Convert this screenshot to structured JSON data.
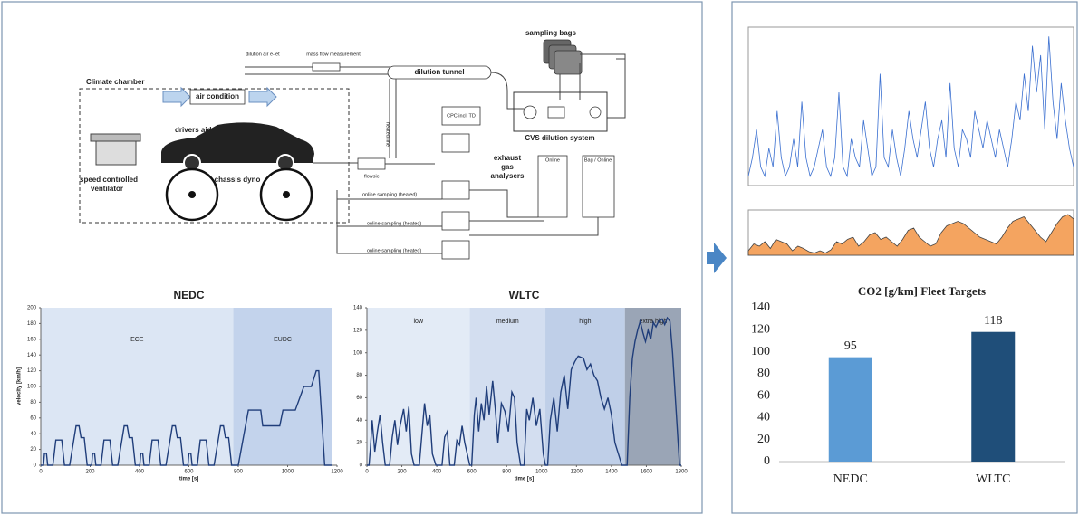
{
  "diagram": {
    "sampling_bags": "sampling bags",
    "dilution_air": "dilution air e-let",
    "mass_flow": "mass flow measurement",
    "dilution_tunnel": "dilution tunnel",
    "climate_chamber": "Climate chamber",
    "air_condition": "air condition",
    "drivers_aid": "drivers aid",
    "ventilator_1": "speed controlled",
    "ventilator_2": "ventilator",
    "chassis_dyno": "chassis dyno",
    "cpc": "CPC incl. TD",
    "cvs": "CVS dilution system",
    "analysers_1": "exhaust",
    "analysers_2": "gas",
    "analysers_3": "analysers",
    "online": "Online",
    "bag_online": "Bag / Online",
    "flowsic": "flowsic",
    "heated_line": "heated line",
    "sampling_1": "online sampling (heated)",
    "sampling_2": "online sampling (heated)",
    "sampling_3": "online sampling (heated)"
  },
  "chart_data": [
    {
      "type": "line",
      "title": "NEDC",
      "xlabel": "time [s]",
      "ylabel": "velocity [km/h]",
      "xlim": [
        0,
        1200
      ],
      "xticks": [
        0,
        200,
        400,
        600,
        800,
        1000,
        1200
      ],
      "ylim": [
        0,
        200
      ],
      "yticks": [
        0,
        20,
        40,
        60,
        80,
        100,
        120,
        140,
        160,
        180,
        200
      ],
      "phases": [
        {
          "name": "ECE",
          "start": 0,
          "end": 780,
          "color": "#dce6f4"
        },
        {
          "name": "EUDC",
          "start": 780,
          "end": 1180,
          "color": "#c3d3ec"
        }
      ],
      "series": [
        {
          "color": "#1f3d7a",
          "x": [
            0,
            11,
            15,
            23,
            28,
            49,
            61,
            85,
            96,
            117,
            143,
            155,
            163,
            176,
            188,
            195,
            206,
            210,
            218,
            223,
            244,
            256,
            280,
            291,
            312,
            338,
            350,
            358,
            371,
            383,
            390,
            401,
            405,
            413,
            418,
            439,
            451,
            475,
            486,
            507,
            533,
            545,
            553,
            566,
            578,
            585,
            596,
            600,
            608,
            613,
            634,
            646,
            670,
            681,
            702,
            728,
            740,
            748,
            761,
            773,
            780,
            800,
            841,
            891,
            899,
            968,
            981,
            1031,
            1066,
            1096,
            1116,
            1126,
            1150,
            1180
          ],
          "values": [
            0,
            0,
            15,
            15,
            0,
            0,
            32,
            32,
            0,
            0,
            50,
            50,
            35,
            35,
            0,
            0,
            0,
            15,
            15,
            0,
            0,
            32,
            32,
            0,
            0,
            50,
            50,
            35,
            35,
            0,
            0,
            0,
            15,
            15,
            0,
            0,
            32,
            32,
            0,
            0,
            50,
            50,
            35,
            35,
            0,
            0,
            0,
            15,
            15,
            0,
            0,
            32,
            32,
            0,
            0,
            50,
            50,
            35,
            35,
            0,
            0,
            0,
            70,
            70,
            50,
            50,
            70,
            70,
            100,
            100,
            120,
            120,
            0,
            0
          ]
        }
      ]
    },
    {
      "type": "line",
      "title": "WLTC",
      "xlabel": "time [s]",
      "xlim": [
        0,
        1800
      ],
      "xticks": [
        0,
        200,
        400,
        600,
        800,
        1000,
        1200,
        1400,
        1600,
        1800
      ],
      "ylim": [
        0,
        140
      ],
      "yticks": [
        0,
        20,
        40,
        60,
        80,
        100,
        120,
        140
      ],
      "phases": [
        {
          "name": "low",
          "start": 0,
          "end": 589,
          "color": "#e3ebf6"
        },
        {
          "name": "medium",
          "start": 589,
          "end": 1022,
          "color": "#d3def0"
        },
        {
          "name": "high",
          "start": 1022,
          "end": 1477,
          "color": "#bfcfe8"
        },
        {
          "name": "extra high",
          "start": 1477,
          "end": 1800,
          "color": "#9aa5b6"
        }
      ],
      "series": [
        {
          "color": "#1f3d7a",
          "x": [
            0,
            12,
            20,
            30,
            45,
            60,
            75,
            90,
            105,
            130,
            145,
            160,
            175,
            190,
            210,
            225,
            240,
            255,
            270,
            300,
            315,
            330,
            345,
            360,
            375,
            395,
            430,
            445,
            460,
            475,
            500,
            515,
            530,
            545,
            560,
            589,
            600,
            615,
            625,
            640,
            655,
            670,
            685,
            700,
            720,
            735,
            750,
            770,
            790,
            810,
            830,
            845,
            860,
            880,
            900,
            915,
            930,
            950,
            970,
            990,
            1010,
            1022,
            1035,
            1050,
            1070,
            1090,
            1110,
            1130,
            1150,
            1170,
            1190,
            1210,
            1240,
            1260,
            1280,
            1300,
            1320,
            1340,
            1360,
            1380,
            1400,
            1420,
            1440,
            1460,
            1477,
            1490,
            1505,
            1520,
            1535,
            1550,
            1565,
            1580,
            1595,
            1610,
            1625,
            1640,
            1655,
            1670,
            1690,
            1705,
            1720,
            1735,
            1750,
            1770,
            1790,
            1800
          ],
          "values": [
            0,
            0,
            15,
            40,
            12,
            30,
            45,
            20,
            0,
            0,
            25,
            40,
            18,
            35,
            50,
            30,
            52,
            10,
            0,
            0,
            28,
            55,
            35,
            45,
            10,
            0,
            0,
            25,
            30,
            0,
            0,
            22,
            18,
            35,
            20,
            0,
            0,
            45,
            60,
            30,
            55,
            40,
            70,
            45,
            75,
            50,
            20,
            55,
            48,
            30,
            65,
            60,
            20,
            0,
            0,
            50,
            40,
            60,
            35,
            50,
            10,
            0,
            0,
            40,
            60,
            30,
            65,
            80,
            50,
            85,
            92,
            97,
            95,
            85,
            90,
            80,
            75,
            60,
            50,
            60,
            45,
            20,
            10,
            0,
            0,
            0,
            60,
            95,
            110,
            120,
            128,
            118,
            110,
            120,
            112,
            127,
            123,
            128,
            130,
            125,
            131,
            128,
            100,
            50,
            0,
            0
          ]
        }
      ]
    },
    {
      "type": "bar",
      "title": "CO2 [g/km]  Fleet Targets",
      "categories": [
        "NEDC",
        "WLTC"
      ],
      "values": [
        95,
        118
      ],
      "colors": [
        "#5b9bd5",
        "#1f4e79"
      ],
      "ylim": [
        0,
        140
      ],
      "yticks": [
        0,
        20,
        40,
        60,
        80,
        100,
        120,
        140
      ]
    },
    {
      "type": "line",
      "ylim": [
        0,
        17
      ],
      "series": [
        {
          "color": "#3a6fd0",
          "values": [
            1,
            3,
            6,
            2,
            1,
            4,
            2,
            8,
            3,
            1,
            2,
            5,
            2,
            9,
            3,
            1,
            2,
            4,
            6,
            2,
            1,
            3,
            10,
            2,
            1,
            5,
            3,
            2,
            7,
            4,
            1,
            2,
            12,
            3,
            2,
            6,
            3,
            1,
            4,
            8,
            5,
            3,
            6,
            9,
            4,
            2,
            5,
            7,
            3,
            11,
            4,
            2,
            6,
            5,
            3,
            8,
            6,
            4,
            7,
            5,
            3,
            6,
            4,
            2,
            5,
            9,
            7,
            12,
            8,
            15,
            10,
            14,
            6,
            16,
            9,
            5,
            11,
            7,
            4,
            2
          ]
        }
      ]
    },
    {
      "type": "area",
      "ylim": [
        0,
        100
      ],
      "series": [
        {
          "color": "#f4a460",
          "values": [
            10,
            25,
            20,
            30,
            15,
            35,
            30,
            25,
            10,
            20,
            15,
            8,
            5,
            10,
            5,
            12,
            30,
            25,
            35,
            40,
            20,
            30,
            45,
            50,
            35,
            40,
            30,
            20,
            35,
            55,
            60,
            40,
            30,
            20,
            25,
            50,
            65,
            70,
            75,
            70,
            60,
            50,
            40,
            35,
            30,
            25,
            40,
            60,
            75,
            80,
            85,
            70,
            55,
            40,
            30,
            50,
            70,
            85,
            90,
            80
          ]
        }
      ]
    }
  ]
}
